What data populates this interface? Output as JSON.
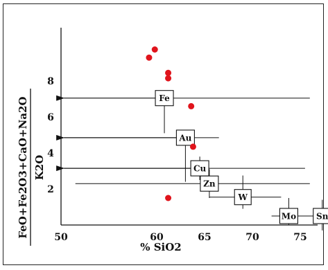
{
  "chart_data": {
    "type": "scatter",
    "xlabel": "% SiO2",
    "ylabel_numerator": "FeO+Fe2O3+CaO+Na2O",
    "ylabel_denominator": "K2O",
    "x_ticks": [
      50,
      60,
      65,
      70,
      75
    ],
    "y_ticks": [
      2,
      4,
      6,
      8
    ],
    "xlim": [
      47,
      82
    ],
    "ylim": [
      0,
      10.5
    ],
    "points": [
      {
        "x": 59.8,
        "y": 9.75
      },
      {
        "x": 59.2,
        "y": 9.3
      },
      {
        "x": 61.2,
        "y": 8.45
      },
      {
        "x": 61.2,
        "y": 8.15
      },
      {
        "x": 63.6,
        "y": 6.6
      },
      {
        "x": 63.8,
        "y": 4.35
      },
      {
        "x": 61.2,
        "y": 1.5
      }
    ],
    "fields": [
      {
        "label": "Fe",
        "x": 60.8,
        "y": 7.05,
        "x_range": [
          60.8,
          76
        ],
        "y_range": [
          5.1,
          7.05
        ],
        "arrow_to_x": 50.3
      },
      {
        "label": "Au",
        "x": 63.0,
        "y": 4.85,
        "x_range": [
          62.5,
          66.5
        ],
        "y_range": [
          2.4,
          5.1
        ],
        "arrow_to_x": 50.3
      },
      {
        "label": "Cu",
        "x": 64.5,
        "y": 3.15,
        "x_range": [
          64.5,
          75.5
        ],
        "y_range": [
          2.5,
          3.8
        ],
        "arrow_to_x": 50.3
      },
      {
        "label": "Zn",
        "x": 65.5,
        "y": 2.3,
        "x_range": [
          51.5,
          76
        ],
        "y_range": [
          1.5,
          3.1
        ]
      },
      {
        "label": "W",
        "x": 69.0,
        "y": 1.55,
        "x_range": [
          65.5,
          73
        ],
        "y_range": [
          0.9,
          2.75
        ]
      },
      {
        "label": "Mo",
        "x": 73.8,
        "y": 0.5,
        "x_range": [
          72,
          76
        ],
        "y_range": [
          0,
          1.5
        ]
      },
      {
        "label": "Sn",
        "x": 77.3,
        "y": 0.5,
        "x_range": [
          75,
          80
        ],
        "y_range": [
          -0.3,
          1.4
        ]
      }
    ],
    "colors": {
      "points": "#e0141c",
      "lines": "#111111"
    }
  }
}
